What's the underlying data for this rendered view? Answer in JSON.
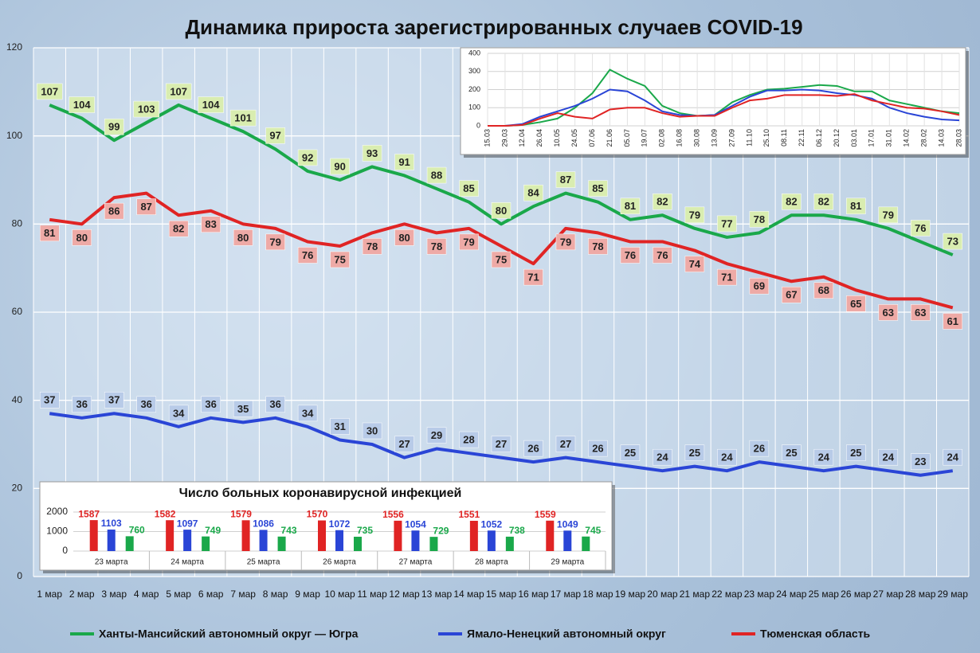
{
  "chart_data": [
    {
      "type": "line",
      "title": "Динамика прироста зарегистрированных случаев COVID-19",
      "categories": [
        "1 мар",
        "2 мар",
        "3 мар",
        "4 мар",
        "5 мар",
        "6 мар",
        "7 мар",
        "8 мар",
        "9 мар",
        "10 мар",
        "11 мар",
        "12 мар",
        "13 мар",
        "14 мар",
        "15 мар",
        "16 мар",
        "17 мар",
        "18 мар",
        "19 мар",
        "20 мар",
        "21 мар",
        "22 мар",
        "23 мар",
        "24 мар",
        "25 мар",
        "26 мар",
        "27 мар",
        "28 мар",
        "29 мар"
      ],
      "series": [
        {
          "name": "Ханты-Мансийский автономный округ — Югра",
          "color": "#1aa84a",
          "values": [
            107,
            104,
            99,
            103,
            107,
            104,
            101,
            97,
            92,
            90,
            93,
            91,
            88,
            85,
            80,
            84,
            87,
            85,
            81,
            82,
            79,
            77,
            78,
            82,
            82,
            81,
            79,
            76,
            73
          ]
        },
        {
          "name": "Ямало-Ненецкий автономный округ",
          "color": "#2a45d6",
          "values": [
            37,
            36,
            37,
            36,
            34,
            36,
            35,
            36,
            34,
            31,
            30,
            27,
            29,
            28,
            27,
            26,
            27,
            26,
            25,
            24,
            25,
            24,
            26,
            25,
            24,
            25,
            24,
            23,
            24
          ]
        },
        {
          "name": "Тюменская область",
          "color": "#e02424",
          "values": [
            81,
            80,
            86,
            87,
            82,
            83,
            80,
            79,
            76,
            75,
            78,
            80,
            78,
            79,
            75,
            71,
            79,
            78,
            76,
            76,
            74,
            71,
            69,
            67,
            68,
            65,
            63,
            63,
            61
          ]
        }
      ],
      "ylim": [
        0,
        120
      ],
      "yticks": [
        0,
        20,
        40,
        60,
        80,
        100,
        120
      ],
      "grid": true,
      "legend": "bottom"
    },
    {
      "type": "line",
      "categories": [
        "15.03",
        "29.03",
        "12.04",
        "26.04",
        "10.05",
        "24.05",
        "07.06",
        "21.06",
        "05.07",
        "19.07",
        "02.08",
        "16.08",
        "30.08",
        "13.09",
        "27.09",
        "11.10",
        "25.10",
        "08.11",
        "22.11",
        "06.12",
        "20.12",
        "03.01",
        "17.01",
        "31.01",
        "14.02",
        "28.02",
        "14.03",
        "28.03"
      ],
      "series": [
        {
          "color": "#1aa84a",
          "values": [
            0,
            0,
            5,
            20,
            40,
            100,
            180,
            310,
            260,
            220,
            110,
            70,
            55,
            60,
            130,
            170,
            200,
            205,
            215,
            225,
            220,
            190,
            190,
            140,
            120,
            100,
            80,
            70
          ]
        },
        {
          "color": "#2a45d6",
          "values": [
            0,
            0,
            10,
            50,
            80,
            110,
            150,
            200,
            190,
            140,
            80,
            60,
            55,
            60,
            110,
            160,
            195,
            195,
            200,
            195,
            180,
            170,
            150,
            100,
            70,
            50,
            35,
            30
          ]
        },
        {
          "color": "#e02424",
          "values": [
            0,
            0,
            5,
            40,
            70,
            50,
            40,
            90,
            100,
            100,
            70,
            50,
            55,
            55,
            100,
            140,
            150,
            170,
            170,
            170,
            165,
            175,
            140,
            120,
            100,
            95,
            80,
            60
          ]
        }
      ],
      "ylim": [
        0,
        400
      ],
      "yticks": [
        0,
        100,
        200,
        300,
        400
      ],
      "grid": true
    },
    {
      "type": "bar",
      "title": "Число больных коронавирусной инфекцией",
      "categories": [
        "23 марта",
        "24 марта",
        "25 марта",
        "26 марта",
        "27 марта",
        "28 марта",
        "29 марта"
      ],
      "series": [
        {
          "color": "#e02424",
          "values": [
            1587,
            1582,
            1579,
            1570,
            1556,
            1551,
            1559
          ]
        },
        {
          "color": "#2a45d6",
          "values": [
            1103,
            1097,
            1086,
            1072,
            1054,
            1052,
            1049
          ]
        },
        {
          "color": "#1aa84a",
          "values": [
            760,
            749,
            743,
            735,
            729,
            738,
            745
          ]
        }
      ],
      "ylim": [
        0,
        2000
      ],
      "yticks": [
        0,
        1000,
        2000
      ],
      "grid": true
    }
  ]
}
